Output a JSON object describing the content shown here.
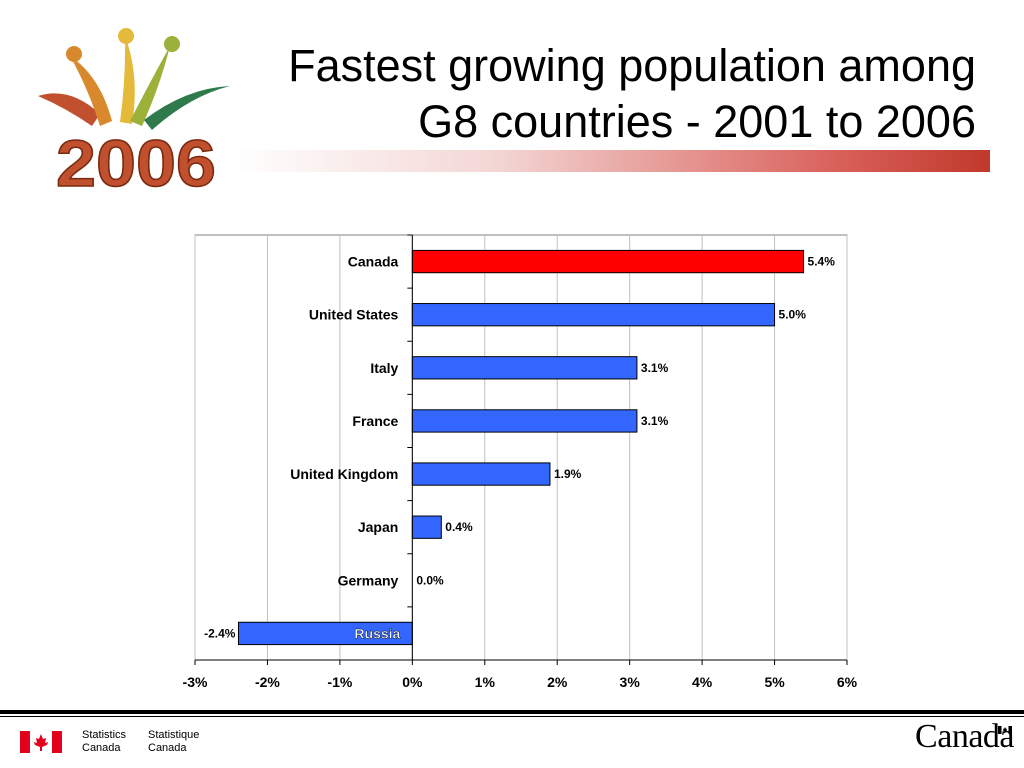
{
  "logo": {
    "year": "2006"
  },
  "title_line1": "Fastest growing population among",
  "title_line2": "G8 countries - 2001 to 2006",
  "chart_data": {
    "type": "bar",
    "orientation": "horizontal",
    "categories": [
      "Canada",
      "United States",
      "Italy",
      "France",
      "United Kingdom",
      "Japan",
      "Germany",
      "Russia"
    ],
    "values": [
      5.4,
      5.0,
      3.1,
      3.1,
      1.9,
      0.4,
      0.0,
      -2.4
    ],
    "value_labels": [
      "5.4%",
      "5.0%",
      "3.1%",
      "3.1%",
      "1.9%",
      "0.4%",
      "0.0%",
      "-2.4%"
    ],
    "xlim": [
      -3,
      6
    ],
    "x_ticks": [
      -3,
      -2,
      -1,
      0,
      1,
      2,
      3,
      4,
      5,
      6
    ],
    "x_tick_labels": [
      "-3%",
      "-2%",
      "-1%",
      "0%",
      "1%",
      "2%",
      "3%",
      "4%",
      "5%",
      "6%"
    ],
    "grid": true,
    "colors": {
      "highlight": "#ff0000",
      "default": "#3366ff",
      "grid": "#c0c0c0"
    },
    "highlight_category": "Canada",
    "title": "",
    "xlabel": "",
    "ylabel": ""
  },
  "footer": {
    "stats_en_line1": "Statistics",
    "stats_en_line2": "Canada",
    "stats_fr_line1": "Statistique",
    "stats_fr_line2": "Canada",
    "wordmark": "Canada"
  }
}
